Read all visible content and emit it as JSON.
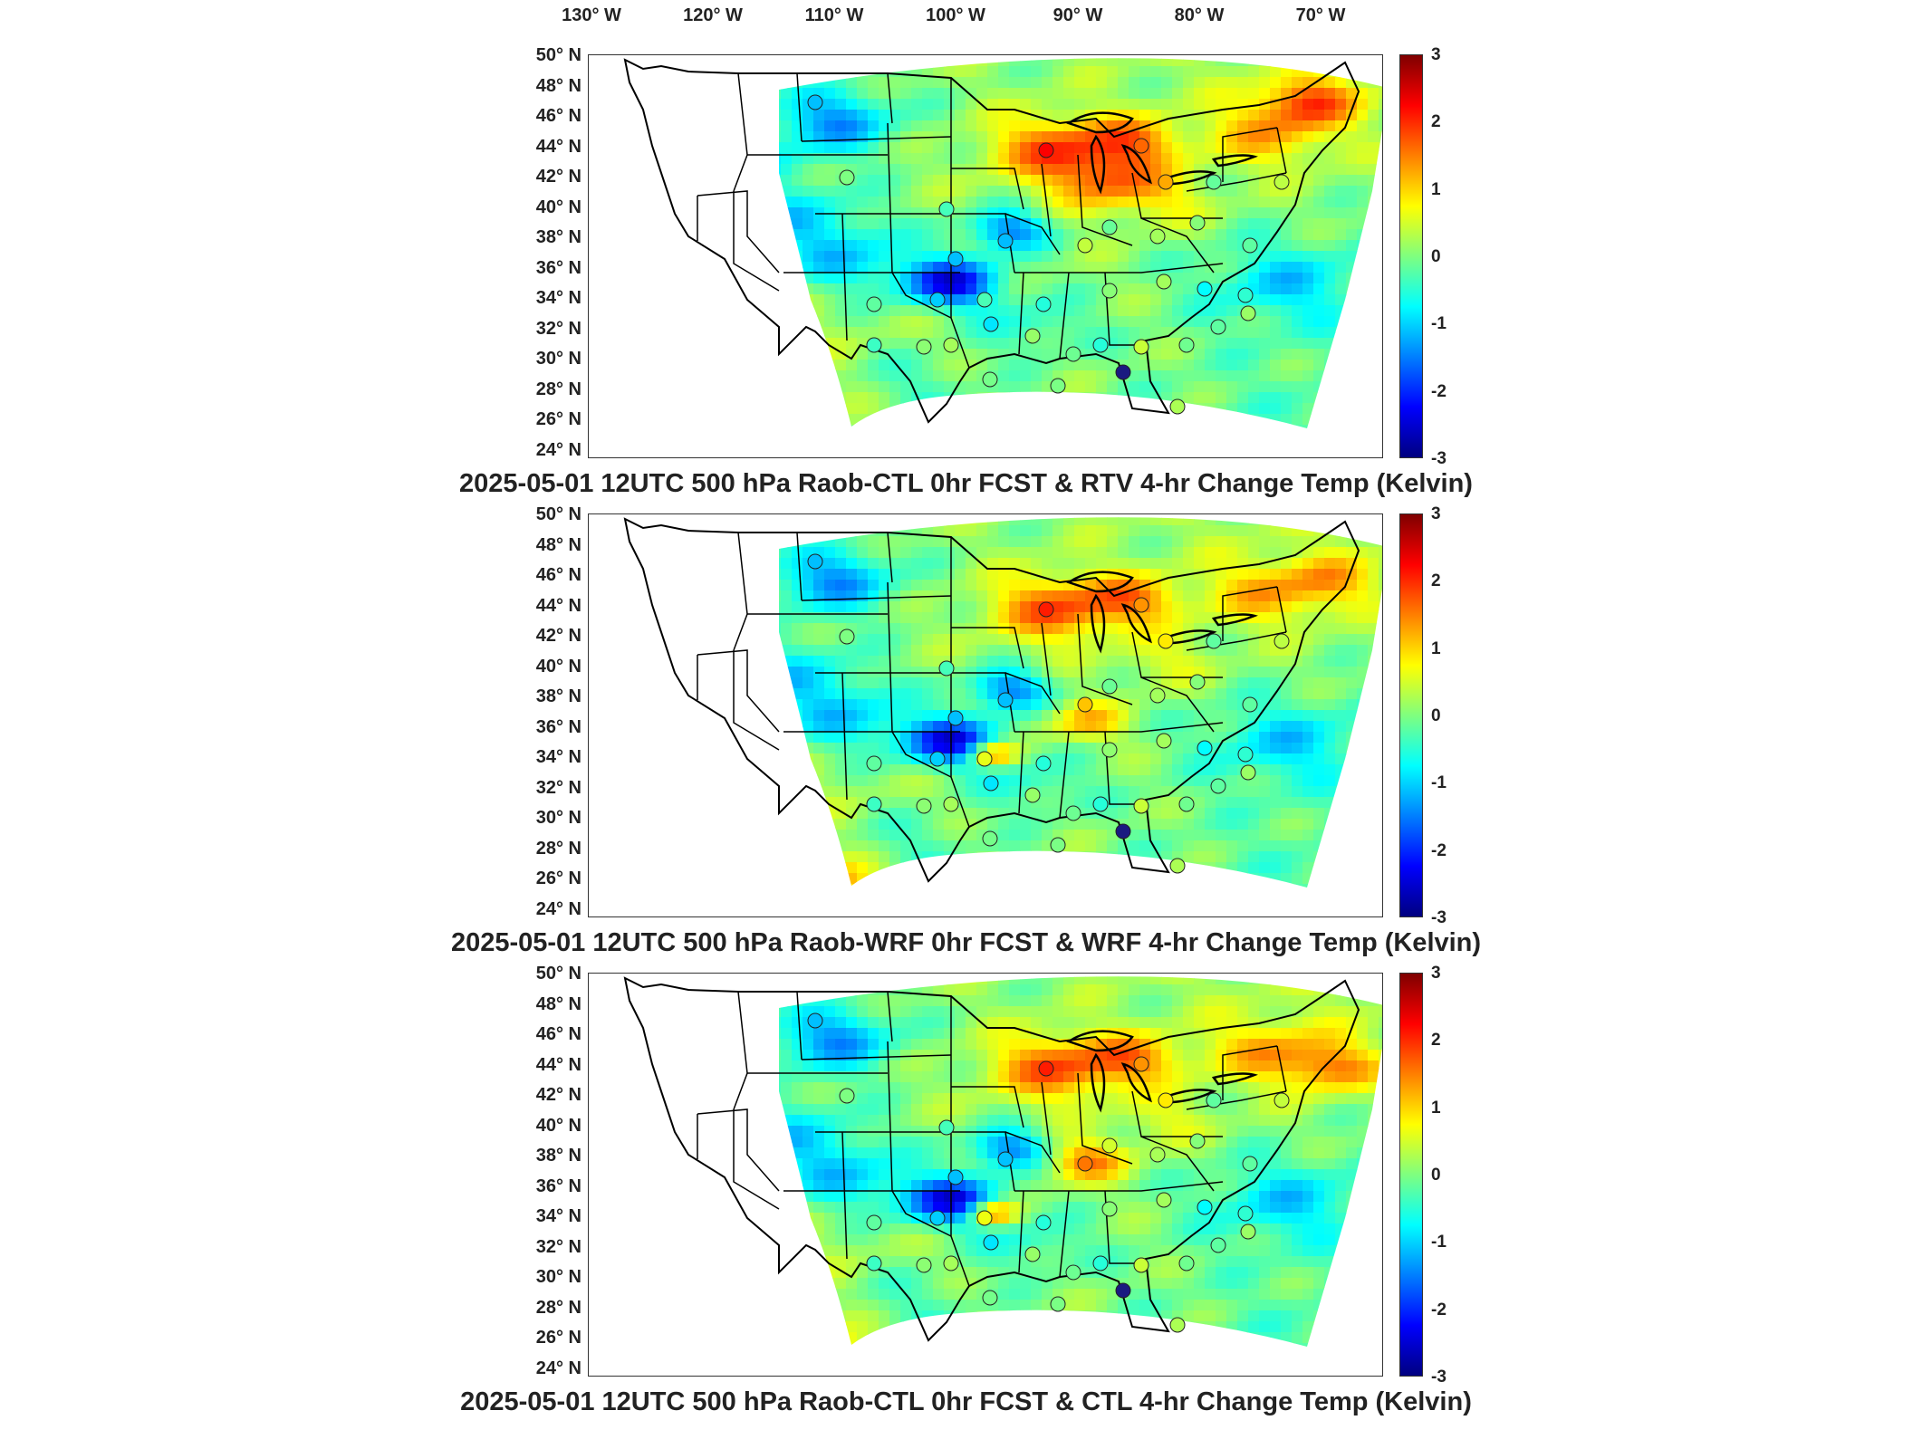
{
  "lon_labels": [
    "130° W",
    "120° W",
    "110° W",
    "100° W",
    "90° W",
    "80° W",
    "70° W"
  ],
  "lat_labels": [
    "50° N",
    "48° N",
    "46° N",
    "44° N",
    "42° N",
    "40° N",
    "38° N",
    "36° N",
    "34° N",
    "32° N",
    "30° N",
    "28° N",
    "26° N",
    "24° N"
  ],
  "colorbar": {
    "min": -3,
    "max": 3,
    "ticks": [
      "3",
      "2",
      "1",
      "0",
      "-1",
      "-2",
      "-3"
    ],
    "colormap": "jet"
  },
  "panels": [
    {
      "title": "2025-05-01 12UTC 500 hPa Raob-CTL 0hr FCST & RTV 4-hr Change Temp (Kelvin)",
      "variant": "rtv"
    },
    {
      "title": "2025-05-01 12UTC 500 hPa Raob-WRF 0hr FCST & WRF 4-hr Change Temp (Kelvin)",
      "variant": "wrf"
    },
    {
      "title": "2025-05-01 12UTC 500 hPa Raob-CTL 0hr FCST & CTL 4-hr Change Temp (Kelvin)",
      "variant": "ctl"
    }
  ]
}
